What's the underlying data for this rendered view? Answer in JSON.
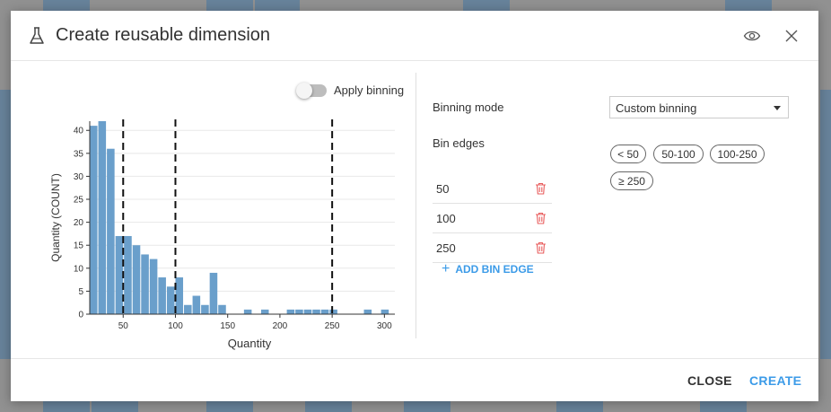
{
  "dialog": {
    "title": "Create reusable dimension",
    "title_icon": "flask-icon",
    "preview_icon": "eye-icon",
    "close_icon": "close-icon"
  },
  "binning_toggle": {
    "label": "Apply binning",
    "on": false
  },
  "settings": {
    "binning_mode_label": "Binning mode",
    "binning_mode_value": "Custom binning",
    "bin_edges_label": "Bin edges",
    "edges": [
      "50",
      "100",
      "250"
    ],
    "add_edge_label": "ADD BIN EDGE",
    "bins": [
      "< 50",
      "50-100",
      "100-250",
      "≥ 250"
    ]
  },
  "footer": {
    "close_label": "CLOSE",
    "create_label": "CREATE"
  },
  "colors": {
    "accent": "#3c9be8",
    "bar": "#6a9fcb",
    "danger": "#e85c5c"
  },
  "chart_data": {
    "type": "bar",
    "xlabel": "Quantity",
    "ylabel": "Quantity (COUNT)",
    "xlim": [
      18,
      310
    ],
    "ylim": [
      0,
      42
    ],
    "xticks": [
      50,
      100,
      150,
      200,
      250,
      300
    ],
    "yticks": [
      0,
      5,
      10,
      15,
      20,
      25,
      30,
      35,
      40
    ],
    "bin_width": 8.2,
    "bins": [
      {
        "x": 18,
        "y": 41
      },
      {
        "x": 26.2,
        "y": 42
      },
      {
        "x": 34.4,
        "y": 36
      },
      {
        "x": 42.6,
        "y": 17
      },
      {
        "x": 50.8,
        "y": 17
      },
      {
        "x": 59,
        "y": 15
      },
      {
        "x": 67.2,
        "y": 13
      },
      {
        "x": 75.4,
        "y": 12
      },
      {
        "x": 83.6,
        "y": 8
      },
      {
        "x": 91.8,
        "y": 6
      },
      {
        "x": 100,
        "y": 8
      },
      {
        "x": 108.2,
        "y": 2
      },
      {
        "x": 116.4,
        "y": 4
      },
      {
        "x": 124.6,
        "y": 2
      },
      {
        "x": 132.8,
        "y": 9
      },
      {
        "x": 141,
        "y": 2
      },
      {
        "x": 149.2,
        "y": 0
      },
      {
        "x": 157.4,
        "y": 0
      },
      {
        "x": 165.6,
        "y": 1
      },
      {
        "x": 173.8,
        "y": 0
      },
      {
        "x": 182,
        "y": 1
      },
      {
        "x": 190.2,
        "y": 0
      },
      {
        "x": 198.4,
        "y": 0
      },
      {
        "x": 206.6,
        "y": 1
      },
      {
        "x": 214.8,
        "y": 1
      },
      {
        "x": 223,
        "y": 1
      },
      {
        "x": 231.2,
        "y": 1
      },
      {
        "x": 239.4,
        "y": 1
      },
      {
        "x": 247.6,
        "y": 1
      },
      {
        "x": 255.8,
        "y": 0
      },
      {
        "x": 264,
        "y": 0
      },
      {
        "x": 272.2,
        "y": 0
      },
      {
        "x": 280.4,
        "y": 1
      },
      {
        "x": 288.6,
        "y": 0
      },
      {
        "x": 296.8,
        "y": 1
      }
    ],
    "edge_lines": [
      50,
      100,
      250
    ]
  }
}
